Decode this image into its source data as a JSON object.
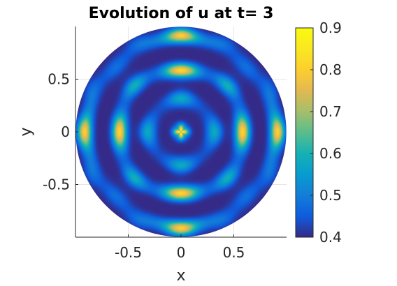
{
  "chart_data": {
    "type": "heatmap",
    "title": "Evolution of u at t= 3",
    "xlabel": "x",
    "ylabel": "y",
    "xlim": [
      -1,
      1
    ],
    "ylim": [
      -1,
      1
    ],
    "x_ticks": [
      {
        "value": -0.5,
        "label": "-0.5"
      },
      {
        "value": 0,
        "label": "0"
      },
      {
        "value": 0.5,
        "label": "0.5"
      }
    ],
    "y_ticks": [
      {
        "value": 0.5,
        "label": "0.5"
      },
      {
        "value": 0,
        "label": "0"
      },
      {
        "value": -0.5,
        "label": "-0.5"
      }
    ],
    "grid": true,
    "domain": "unit-disk",
    "colormap": "parula",
    "colorbar": {
      "range": [
        0.4,
        0.9
      ],
      "ticks": [
        {
          "value": 0.9,
          "label": "0.9"
        },
        {
          "value": 0.8,
          "label": "0.8"
        },
        {
          "value": 0.7,
          "label": "0.7"
        },
        {
          "value": 0.6,
          "label": "0.6"
        },
        {
          "value": 0.5,
          "label": "0.5"
        },
        {
          "value": 0.4,
          "label": "0.4"
        }
      ]
    },
    "field_value_range": [
      0.4,
      0.9
    ]
  }
}
